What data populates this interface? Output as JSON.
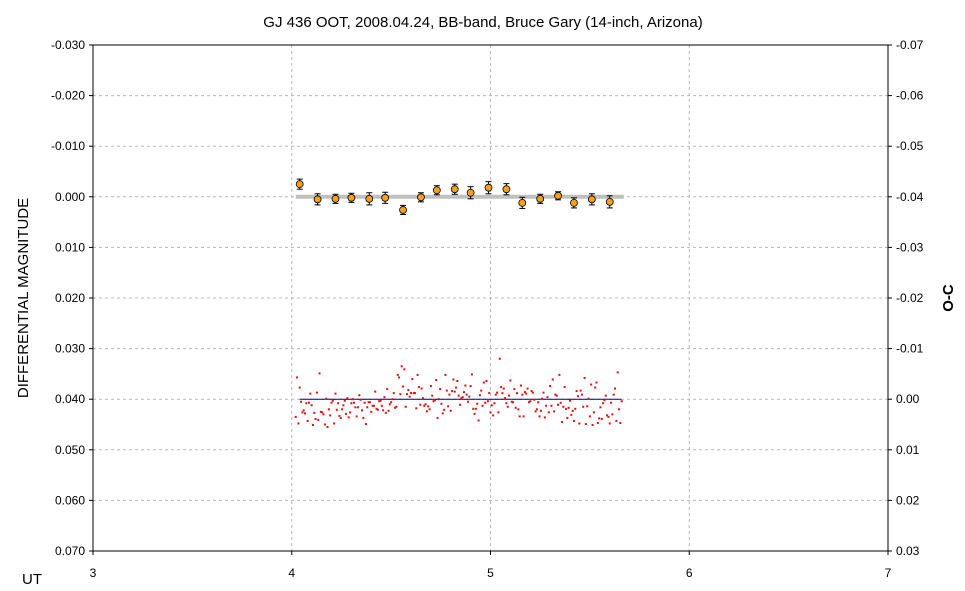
{
  "chart_data": {
    "type": "scatter",
    "title": "GJ 436 OOT, 2008.04.24, BB-band, Bruce Gary (14-inch, Arizona)",
    "xlabel": "UT",
    "ylabel": "DIFFERENTIAL MAGNITUDE",
    "y2label": "O-C",
    "xlim": [
      3,
      7
    ],
    "ylim": [
      -0.03,
      0.07
    ],
    "y2lim": [
      -0.07,
      0.03
    ],
    "y_reversed": true,
    "grid": true,
    "x_ticks": [
      "3",
      "4",
      "5",
      "6",
      "7"
    ],
    "y_ticks": [
      "-0.030",
      "-0.020",
      "-0.010",
      "0.000",
      "0.010",
      "0.020",
      "0.030",
      "0.040",
      "0.050",
      "0.060",
      "0.070"
    ],
    "y2_ticks": [
      "-0.07",
      "-0.06",
      "-0.05",
      "-0.04",
      "-0.03",
      "-0.02",
      "-0.01",
      "0.00",
      "0.01",
      "0.02",
      "0.03"
    ],
    "binned": {
      "color": "#f5a01e",
      "x": [
        4.04,
        4.13,
        4.22,
        4.3,
        4.39,
        4.47,
        4.56,
        4.65,
        4.73,
        4.82,
        4.9,
        4.99,
        5.08,
        5.16,
        5.25,
        5.34,
        5.42,
        5.51,
        5.6
      ],
      "y": [
        -0.0025,
        0.0005,
        0.0004,
        0.0002,
        0.0004,
        0.0002,
        0.0026,
        0.0001,
        -0.0013,
        -0.0015,
        -0.0008,
        -0.0018,
        -0.0015,
        0.0012,
        0.0004,
        -0.0002,
        0.0012,
        0.0005,
        0.001
      ],
      "err": [
        0.001,
        0.0011,
        0.0009,
        0.0009,
        0.0012,
        0.0011,
        0.0009,
        0.0009,
        0.0009,
        0.001,
        0.0012,
        0.0012,
        0.0011,
        0.0011,
        0.0009,
        0.0008,
        0.001,
        0.0011,
        0.0012
      ]
    },
    "model": {
      "color": "#c0c0c0",
      "x": [
        4.02,
        5.67
      ],
      "y": [
        0.0,
        0.0
      ]
    },
    "residuals": {
      "color": "#e01010",
      "x_start": 4.02,
      "x_end": 5.66,
      "y": [
        0.0035,
        -0.0043,
        0.0048,
        -0.0023,
        0.0005,
        0.0026,
        0.0022,
        0.0028,
        0.0008,
        0.0043,
        0.0007,
        -0.0011,
        0.0012,
        0.0051,
        0.0027,
        0.0039,
        -0.0013,
        0.0041,
        -0.0051,
        0.0025,
        0.0026,
        0.003,
        0.005,
        -0.0001,
        0.0055,
        0.002,
        0.0032,
        0.0007,
        0.0003,
        0.0048,
        -0.0011,
        0.0021,
        0.0008,
        0.0033,
        0.0037,
        0.002,
        0.0012,
        0.0003,
        0.0029,
        -0.0002,
        0.0036,
        0.0026,
        0.0008,
        0.0,
        0.0007,
        0.0016,
        0.0034,
        0.0016,
        -0.0008,
        0.0001,
        0.0022,
        0.0037,
        0.0007,
        0.0049,
        0.0016,
        0.0006,
        0.0006,
        0.0025,
        0.0013,
        0.0013,
        -0.0015,
        0.0019,
        0.0021,
        0.0004,
        0.0003,
        0.0013,
        0.0022,
        -0.0004,
        0.0027,
        -0.002,
        0.0023,
        0.001,
        0.0006,
        0.0,
        -0.0012,
        0.0017,
        0.0015,
        -0.0048,
        -0.0043,
        -0.001,
        -0.0065,
        -0.0025,
        -0.0059,
        0.0015,
        -0.001,
        -0.0018,
        -0.0005,
        -0.0012,
        -0.004,
        -0.0012,
        -0.0012,
        0.0018,
        -0.0048,
        -0.0024,
        0.0011,
        -0.0021,
        -0.0002,
        0.0013,
        0.001,
        0.0024,
        0.0014,
        0.002,
        -0.0026,
        -0.0007,
        0.0004,
        0.0002,
        -0.0038,
        0.0037,
        0.0,
        -0.002,
        0.0009,
        0.0028,
        0.0021,
        -0.0048,
        -0.0017,
        0.0014,
        -0.0009,
        0.0023,
        -0.0016,
        -0.0039,
        -0.0015,
        -0.0023,
        -0.0036,
        -0.0007,
        0.0011,
        -0.0002,
        -0.0004,
        -0.0014,
        -0.0027,
        -0.0009,
        0.0005,
        -0.0005,
        -0.0026,
        -0.0049,
        0.0019,
        0.0029,
        0.0019,
        0.0009,
        0.0042,
        -0.0008,
        -0.0017,
        0.0013,
        -0.0033,
        0.0007,
        -0.0036,
        0.0004,
        -0.0012,
        0.0026,
        0.0012,
        0.0032,
        0.0008,
        -0.0009,
        -0.0013,
        0.0026,
        -0.008,
        -0.0024,
        -0.0012,
        -0.0021,
        -0.0002,
        0.0008,
        0.0015,
        -0.0007,
        -0.0037,
        0.0005,
        0.0006,
        -0.002,
        0.0017,
        -0.0012,
        0.002,
        0.0034,
        -0.0027,
        -0.0009,
        0.0034,
        -0.0014,
        -0.0011,
        -0.0021,
        0.0006,
        0.0004,
        -0.0016,
        -0.0013,
        0.0001,
        0.0024,
        0.002,
        0.0006,
        0.0034,
        0.0023,
        -0.0001,
        -0.0013,
        0.0036,
        0.0013,
        -0.0004,
        0.0026,
        -0.0026,
        0.0013,
        -0.0039,
        0.0024,
        -0.0009,
        -0.0007,
        0.0011,
        -0.0048,
        0.0007,
        0.0045,
        0.0015,
        -0.0024,
        0.0019,
        0.0037,
        0.0017,
        0.0003,
        0.0031,
        0.0023,
        0.0043,
        0.0019,
        -0.0016,
        -0.0006,
        0.0048,
        -0.0017,
        -0.0009,
        0.0015,
        -0.0042,
        0.0049,
        0.0014,
        -0.0001,
        0.0034,
        -0.0029,
        0.0051,
        0.0026,
        -0.0023,
        -0.0033,
        0.0047,
        0.0038,
        0.0016,
        0.0039,
        0.0008,
        0.0002,
        -0.0007,
        0.0032,
        0.0035,
        0.0048,
        0.0007,
        0.003,
        -0.0009,
        -0.0021,
        0.0043,
        -0.0053,
        0.002,
        0.0047,
        0.0004
      ]
    },
    "zero_line": {
      "color": "#000080",
      "x": [
        4.04,
        5.66
      ],
      "y": [
        0.0,
        0.0
      ]
    }
  }
}
